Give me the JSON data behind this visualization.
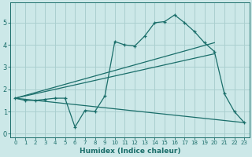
{
  "title": "",
  "xlabel": "Humidex (Indice chaleur)",
  "ylabel": "",
  "bg_color": "#cce8e8",
  "grid_color": "#aacfcf",
  "line_color": "#1a6e6a",
  "xlim": [
    -0.5,
    23.5
  ],
  "ylim": [
    -0.15,
    5.9
  ],
  "xticks": [
    0,
    1,
    2,
    3,
    4,
    5,
    6,
    7,
    8,
    9,
    10,
    11,
    12,
    13,
    14,
    15,
    16,
    17,
    18,
    19,
    20,
    21,
    22,
    23
  ],
  "yticks": [
    0,
    1,
    2,
    3,
    4,
    5
  ],
  "series1_x": [
    0,
    1,
    2,
    3,
    4,
    5,
    6,
    7,
    8,
    9,
    10,
    11,
    12,
    13,
    14,
    15,
    16,
    17,
    18,
    19,
    20,
    21,
    22,
    23
  ],
  "series1_y": [
    1.6,
    1.5,
    1.5,
    1.55,
    1.6,
    1.6,
    0.3,
    1.05,
    1.0,
    1.7,
    4.15,
    4.0,
    3.95,
    4.4,
    5.0,
    5.05,
    5.35,
    5.0,
    4.6,
    4.1,
    3.7,
    1.8,
    1.0,
    0.5
  ],
  "series2_x": [
    0,
    20
  ],
  "series2_y": [
    1.6,
    4.1
  ],
  "series3_x": [
    0,
    23
  ],
  "series3_y": [
    1.6,
    0.5
  ],
  "series4_x": [
    0,
    20
  ],
  "series4_y": [
    1.6,
    3.6
  ]
}
